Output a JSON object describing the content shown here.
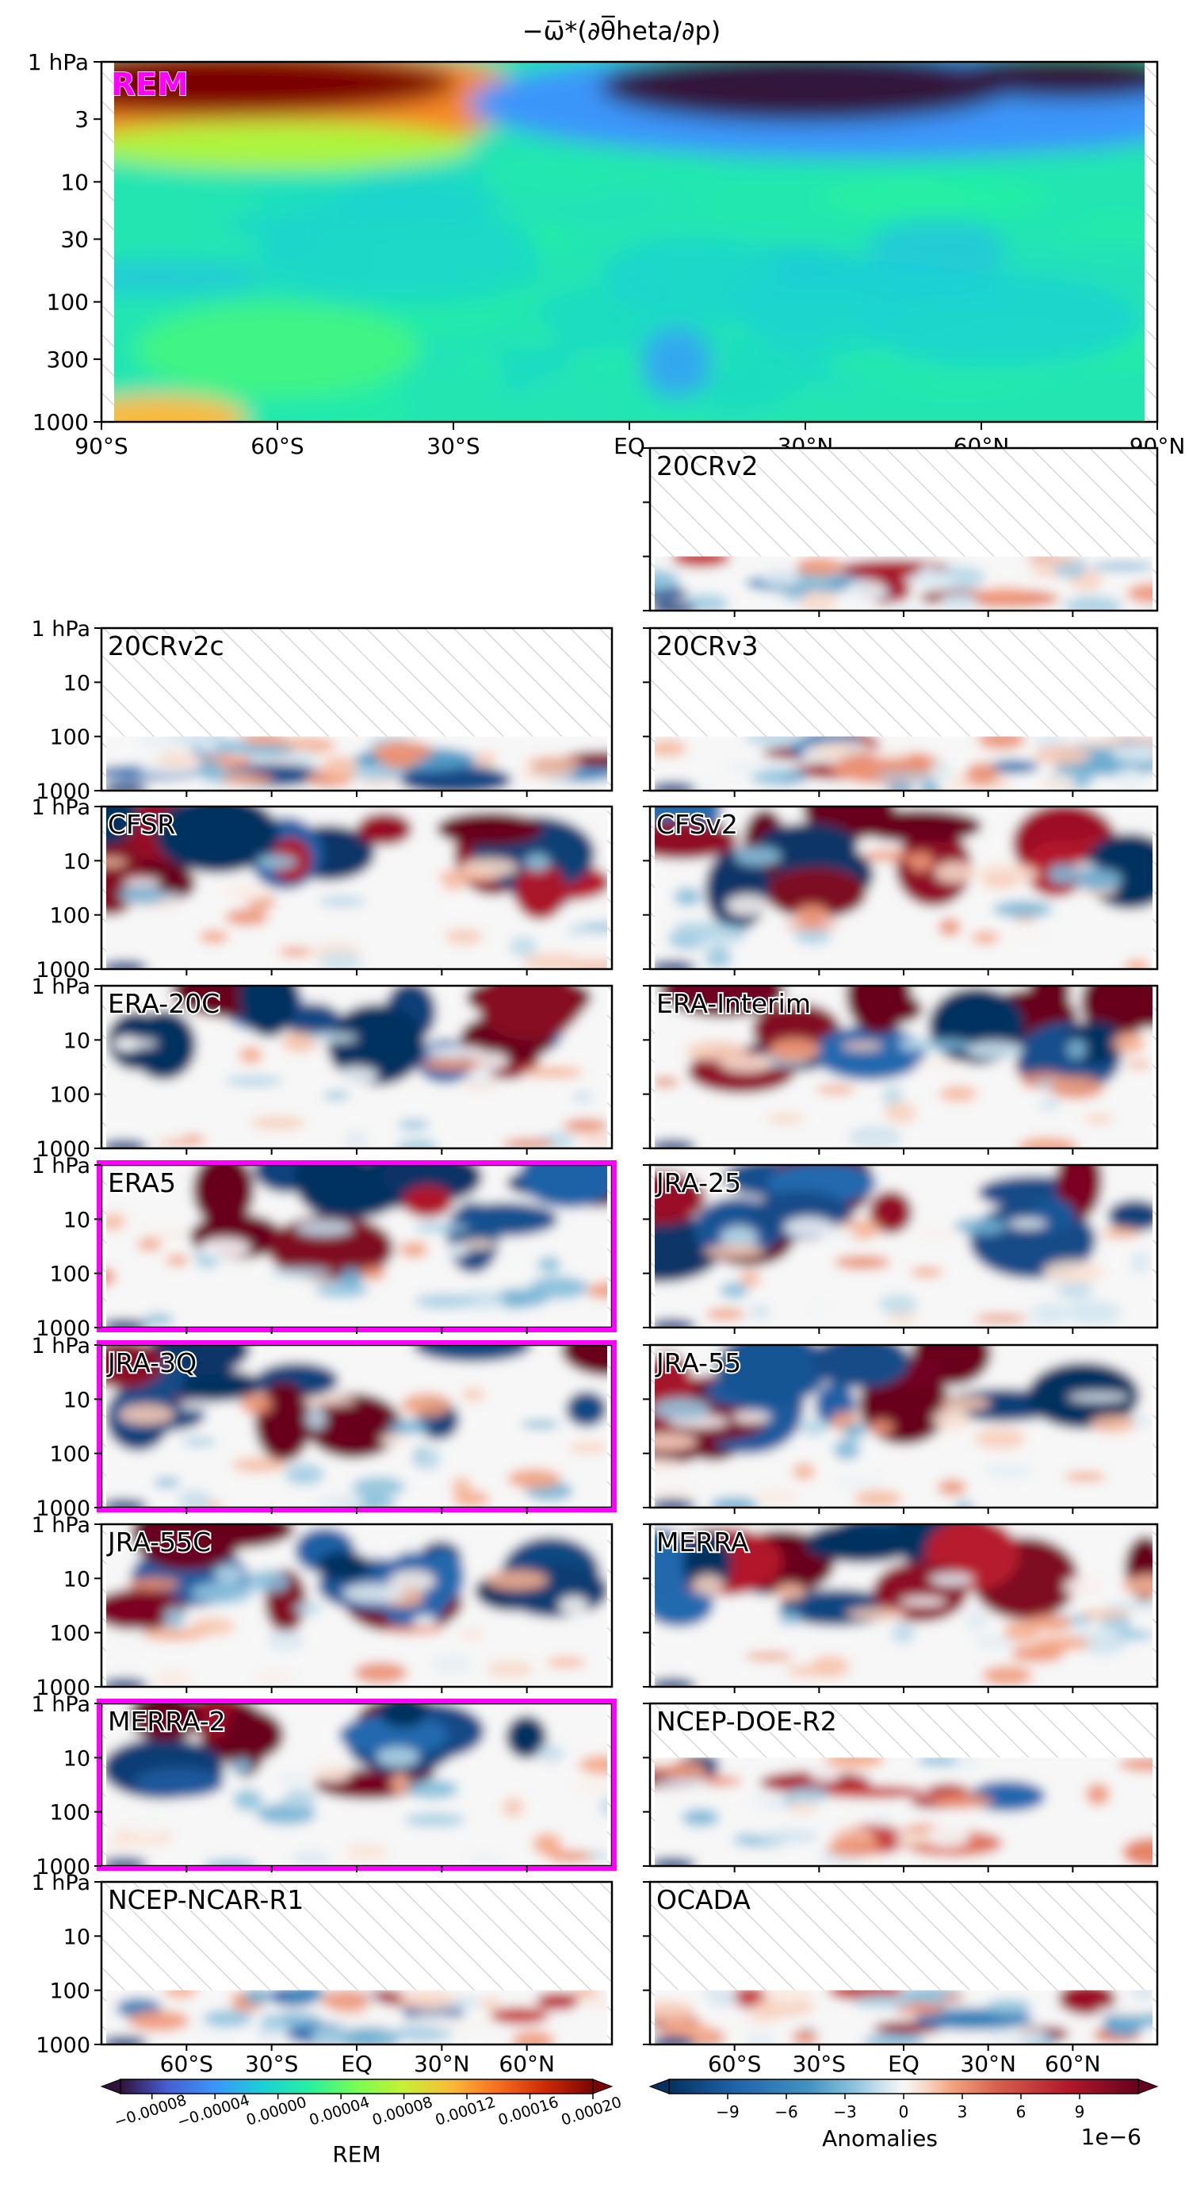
{
  "title": "−ω̅*(∂θ̅heta/∂p)",
  "chart_data": {
    "type": "heatmap",
    "title": "−ω̅*(∂θ̅heta/∂p)",
    "x_axis": {
      "range": [
        -90,
        90
      ],
      "ticks": [
        -90,
        -60,
        -30,
        0,
        30,
        60,
        90
      ],
      "tick_labels": [
        "90°S",
        "60°S",
        "30°S",
        "EQ",
        "30°N",
        "60°N",
        "90°N"
      ],
      "bottom_tick_labels": [
        "60°S",
        "30°S",
        "EQ",
        "30°N",
        "60°N"
      ]
    },
    "y_axis": {
      "scale": "log",
      "direction": "pressure decreasing upward",
      "range_hPa": [
        1000,
        1
      ],
      "main_ticks": [
        1,
        3,
        10,
        30,
        100,
        300,
        1000
      ],
      "main_tick_labels": [
        "1 hPa",
        "3",
        "10",
        "30",
        "100",
        "300",
        "1000"
      ],
      "panel_ticks": [
        1,
        10,
        100,
        1000
      ],
      "panel_tick_labels": [
        "1 hPa",
        "10",
        "100",
        "1000"
      ]
    },
    "hatch_meaning": "no data",
    "main_panel": {
      "label": "REM",
      "label_color": "#ff00ff",
      "colormap": "turbo",
      "features": [
        {
          "region": "90°S–40°S, 1–5 hPa",
          "value": 0.0002
        },
        {
          "region": "10°N–80°N, 1–3 hPa",
          "value": -8e-05
        },
        {
          "region": "0°–15°N, 200–400 hPa",
          "value": -2e-05
        },
        {
          "region": "interior",
          "value": 0.0
        }
      ]
    },
    "panels": [
      {
        "name": "20CRv2",
        "column": "right",
        "data_top_hPa": 100,
        "highlighted": false,
        "show_y_labels": false
      },
      {
        "name": "20CRv2c",
        "column": "left",
        "data_top_hPa": 100,
        "highlighted": false,
        "show_y_labels": true
      },
      {
        "name": "20CRv3",
        "column": "right",
        "data_top_hPa": 100,
        "highlighted": false,
        "show_y_labels": false
      },
      {
        "name": "CFSR",
        "column": "left",
        "data_top_hPa": 1,
        "highlighted": false,
        "show_y_labels": true
      },
      {
        "name": "CFSv2",
        "column": "right",
        "data_top_hPa": 1,
        "highlighted": false,
        "show_y_labels": false
      },
      {
        "name": "ERA-20C",
        "column": "left",
        "data_top_hPa": 1,
        "highlighted": false,
        "show_y_labels": true
      },
      {
        "name": "ERA-Interim",
        "column": "right",
        "data_top_hPa": 1,
        "highlighted": false,
        "show_y_labels": false
      },
      {
        "name": "ERA5",
        "column": "left",
        "data_top_hPa": 1,
        "highlighted": true,
        "show_y_labels": true
      },
      {
        "name": "JRA-25",
        "column": "right",
        "data_top_hPa": 1,
        "highlighted": false,
        "show_y_labels": false
      },
      {
        "name": "JRA-3Q",
        "column": "left",
        "data_top_hPa": 1,
        "highlighted": true,
        "show_y_labels": true
      },
      {
        "name": "JRA-55",
        "column": "right",
        "data_top_hPa": 1,
        "highlighted": false,
        "show_y_labels": false
      },
      {
        "name": "JRA-55C",
        "column": "left",
        "data_top_hPa": 1,
        "highlighted": false,
        "show_y_labels": true
      },
      {
        "name": "MERRA",
        "column": "right",
        "data_top_hPa": 1,
        "highlighted": false,
        "show_y_labels": false
      },
      {
        "name": "MERRA-2",
        "column": "left",
        "data_top_hPa": 1,
        "highlighted": true,
        "show_y_labels": true
      },
      {
        "name": "NCEP-DOE-R2",
        "column": "right",
        "data_top_hPa": 10,
        "highlighted": false,
        "show_y_labels": false
      },
      {
        "name": "NCEP-NCAR-R1",
        "column": "left",
        "data_top_hPa": 100,
        "highlighted": false,
        "show_y_labels": true
      },
      {
        "name": "OCADA",
        "column": "right",
        "data_top_hPa": 100,
        "highlighted": false,
        "show_y_labels": false
      }
    ],
    "colorbars": [
      {
        "name": "REM",
        "label": "REM",
        "colormap": "turbo",
        "range": [
          -0.0001,
          0.0002
        ],
        "tick_values": [
          -8e-05,
          -4e-05,
          0.0,
          4e-05,
          8e-05,
          0.00012,
          0.00016,
          0.0002
        ],
        "tick_labels": [
          "−0.00008",
          "−0.00004",
          "0.00000",
          "0.00004",
          "0.00008",
          "0.00012",
          "0.00016",
          "0.00020"
        ]
      },
      {
        "name": "Anomalies",
        "label": "Anomalies",
        "colormap": "RdBu_r",
        "range": [
          -12,
          12
        ],
        "tick_values": [
          -9,
          -6,
          -3,
          0,
          3,
          6,
          9
        ],
        "tick_labels": [
          "−9",
          "−6",
          "−3",
          "0",
          "3",
          "6",
          "9"
        ],
        "scale_label": "1e−6"
      }
    ],
    "highlight_color": "#ff00ff"
  }
}
